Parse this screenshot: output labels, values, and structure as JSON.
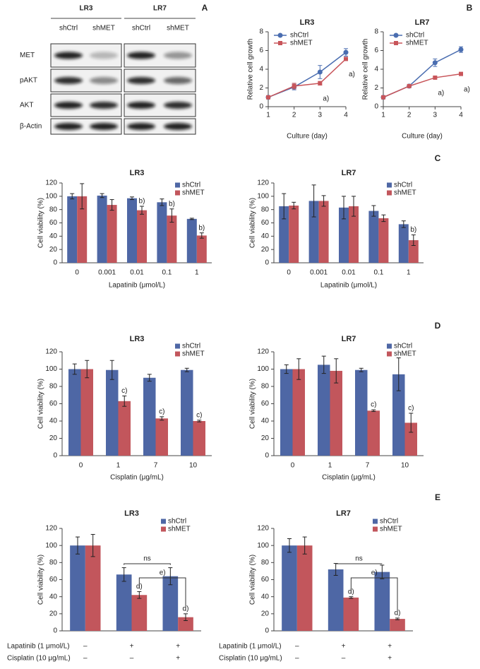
{
  "panel_labels": [
    "A",
    "B",
    "C",
    "D",
    "E"
  ],
  "blot": {
    "groups": [
      {
        "name": "LR3",
        "lanes": [
          "shCtrl",
          "shMET"
        ]
      },
      {
        "name": "LR7",
        "lanes": [
          "shCtrl",
          "shMET"
        ]
      }
    ],
    "rows": [
      "MET",
      "pAKT",
      "AKT",
      "β-Actin"
    ]
  },
  "chart_data": [
    {
      "type": "line",
      "title": "LR3",
      "x": [
        1,
        2,
        3,
        4
      ],
      "xlim": [
        1,
        4
      ],
      "xticks": [
        1,
        2,
        3,
        4
      ],
      "ylim": [
        0,
        8
      ],
      "yticks": [
        0,
        2,
        4,
        6,
        8
      ],
      "xlabel": "Culture (day)",
      "ylabel": "Relative cell growth",
      "legend": "upper left",
      "series": [
        {
          "name": "shCtrl",
          "color": "#4a6db0",
          "marker": "circle",
          "values": [
            1,
            2.1,
            3.7,
            5.8
          ],
          "errors": [
            0,
            0.3,
            0.7,
            0.4
          ]
        },
        {
          "name": "shMET",
          "color": "#c8555a",
          "marker": "square",
          "values": [
            1,
            2.2,
            2.5,
            5.1
          ],
          "errors": [
            0,
            0.3,
            0.2,
            0.1
          ],
          "notes": [
            null,
            null,
            "a)",
            "a)"
          ]
        }
      ]
    },
    {
      "type": "line",
      "title": "LR7",
      "x": [
        1,
        2,
        3,
        4
      ],
      "xlim": [
        1,
        4
      ],
      "xticks": [
        1,
        2,
        3,
        4
      ],
      "ylim": [
        0,
        8
      ],
      "yticks": [
        0,
        2,
        4,
        6,
        8
      ],
      "xlabel": "Culture (day)",
      "ylabel": "Relative cell growth",
      "legend": "upper left",
      "series": [
        {
          "name": "shCtrl",
          "color": "#4a6db0",
          "marker": "circle",
          "values": [
            1,
            2.2,
            4.7,
            6.1
          ],
          "errors": [
            0,
            0.1,
            0.4,
            0.3
          ]
        },
        {
          "name": "shMET",
          "color": "#c8555a",
          "marker": "square",
          "values": [
            1,
            2.2,
            3.1,
            3.5
          ],
          "errors": [
            0,
            0.1,
            0.1,
            0.1
          ],
          "notes": [
            null,
            null,
            "a)",
            "a)"
          ]
        }
      ]
    },
    {
      "type": "bar",
      "title": "LR3",
      "categories": [
        "0",
        "0.001",
        "0.01",
        "0.1",
        "1"
      ],
      "ylim": [
        0,
        120
      ],
      "yticks": [
        0,
        20,
        40,
        60,
        80,
        100,
        120
      ],
      "xlabel": "Lapatinib (μmol/L)",
      "ylabel": "Cell viability (%)",
      "legend": "upper right",
      "series": [
        {
          "name": "shCtrl",
          "color": "#4e67a5",
          "values": [
            100,
            101,
            97,
            91,
            66
          ],
          "errors": [
            4,
            3,
            2,
            5,
            1
          ]
        },
        {
          "name": "shMET",
          "color": "#c2565c",
          "values": [
            100,
            87,
            79,
            71,
            41
          ],
          "errors": [
            19,
            8,
            6,
            10,
            4
          ],
          "notes": [
            null,
            null,
            "b)",
            "b)",
            "b)"
          ]
        }
      ]
    },
    {
      "type": "bar",
      "title": "LR7",
      "categories": [
        "0",
        "0.001",
        "0.01",
        "0.1",
        "1"
      ],
      "ylim": [
        0,
        120
      ],
      "yticks": [
        0,
        20,
        40,
        60,
        80,
        100,
        120
      ],
      "xlabel": "Lapatinib (μmol/L)",
      "ylabel": "Cell viability (%)",
      "legend": "upper right",
      "series": [
        {
          "name": "shCtrl",
          "color": "#4e67a5",
          "values": [
            85,
            93,
            83,
            78,
            58
          ],
          "errors": [
            19,
            24,
            17,
            8,
            5
          ]
        },
        {
          "name": "shMET",
          "color": "#c2565c",
          "values": [
            86,
            93,
            85,
            67,
            34
          ],
          "errors": [
            5,
            8,
            15,
            5,
            8
          ],
          "notes": [
            null,
            null,
            null,
            null,
            "b)"
          ]
        }
      ]
    },
    {
      "type": "bar",
      "title": "LR3",
      "categories": [
        "0",
        "1",
        "7",
        "10"
      ],
      "ylim": [
        0,
        120
      ],
      "yticks": [
        0,
        20,
        40,
        60,
        80,
        100,
        120
      ],
      "xlabel": "Cisplatin (μg/mL)",
      "ylabel": "Cell viability (%)",
      "legend": "upper right",
      "series": [
        {
          "name": "shCtrl",
          "color": "#4e67a5",
          "values": [
            100,
            99,
            90,
            99
          ],
          "errors": [
            6,
            11,
            4,
            2
          ]
        },
        {
          "name": "shMET",
          "color": "#c2565c",
          "values": [
            100,
            63,
            43,
            40
          ],
          "errors": [
            10,
            6,
            2,
            1
          ],
          "notes": [
            null,
            "c)",
            "c)",
            "c)"
          ]
        }
      ]
    },
    {
      "type": "bar",
      "title": "LR7",
      "categories": [
        "0",
        "1",
        "7",
        "10"
      ],
      "ylim": [
        0,
        120
      ],
      "yticks": [
        0,
        20,
        40,
        60,
        80,
        100,
        120
      ],
      "xlabel": "Cisplatin (μg/mL)",
      "ylabel": "Cell viability (%)",
      "legend": "upper right",
      "series": [
        {
          "name": "shCtrl",
          "color": "#4e67a5",
          "values": [
            100,
            105,
            99,
            94
          ],
          "errors": [
            5,
            10,
            2,
            19
          ]
        },
        {
          "name": "shMET",
          "color": "#c2565c",
          "values": [
            100,
            98,
            52,
            38
          ],
          "errors": [
            12,
            14,
            1,
            11
          ],
          "notes": [
            null,
            null,
            "c)",
            "c)"
          ]
        }
      ]
    },
    {
      "type": "bar",
      "title": "LR3",
      "ylim": [
        0,
        120
      ],
      "yticks": [
        0,
        20,
        40,
        60,
        80,
        100,
        120
      ],
      "ylabel": "Cell viability (%)",
      "legend": "upper right",
      "conditions": [
        {
          "label": "Lapatinib (1 μmol/L)",
          "values": [
            "–",
            "+",
            "+"
          ]
        },
        {
          "label": "Cisplatin (10 μg/mL)",
          "values": [
            "–",
            "–",
            "+"
          ]
        }
      ],
      "brackets": [
        {
          "label": "ns"
        },
        {
          "label": "e)"
        }
      ],
      "series": [
        {
          "name": "shCtrl",
          "color": "#4e67a5",
          "values": [
            100,
            66,
            64
          ],
          "errors": [
            10,
            8,
            10
          ]
        },
        {
          "name": "shMET",
          "color": "#c2565c",
          "values": [
            100,
            42,
            16
          ],
          "errors": [
            13,
            4,
            4
          ],
          "notes": [
            null,
            "d)",
            "d)"
          ]
        }
      ]
    },
    {
      "type": "bar",
      "title": "LR7",
      "ylim": [
        0,
        120
      ],
      "yticks": [
        0,
        20,
        40,
        60,
        80,
        100,
        120
      ],
      "ylabel": "Cell viability (%)",
      "legend": "upper right",
      "conditions": [
        {
          "label": "Lapatinib (1 μmol/L)",
          "values": [
            "–",
            "+",
            "+"
          ]
        },
        {
          "label": "Cisplatin (10 μg/mL)",
          "values": [
            "–",
            "–",
            "+"
          ]
        }
      ],
      "brackets": [
        {
          "label": "ns"
        },
        {
          "label": "e)"
        }
      ],
      "series": [
        {
          "name": "shCtrl",
          "color": "#4e67a5",
          "values": [
            100,
            72,
            69
          ],
          "errors": [
            8,
            7,
            8
          ]
        },
        {
          "name": "shMET",
          "color": "#c2565c",
          "values": [
            100,
            39,
            14
          ],
          "errors": [
            10,
            1,
            1
          ],
          "notes": [
            null,
            "d)",
            "d)"
          ]
        }
      ]
    }
  ]
}
